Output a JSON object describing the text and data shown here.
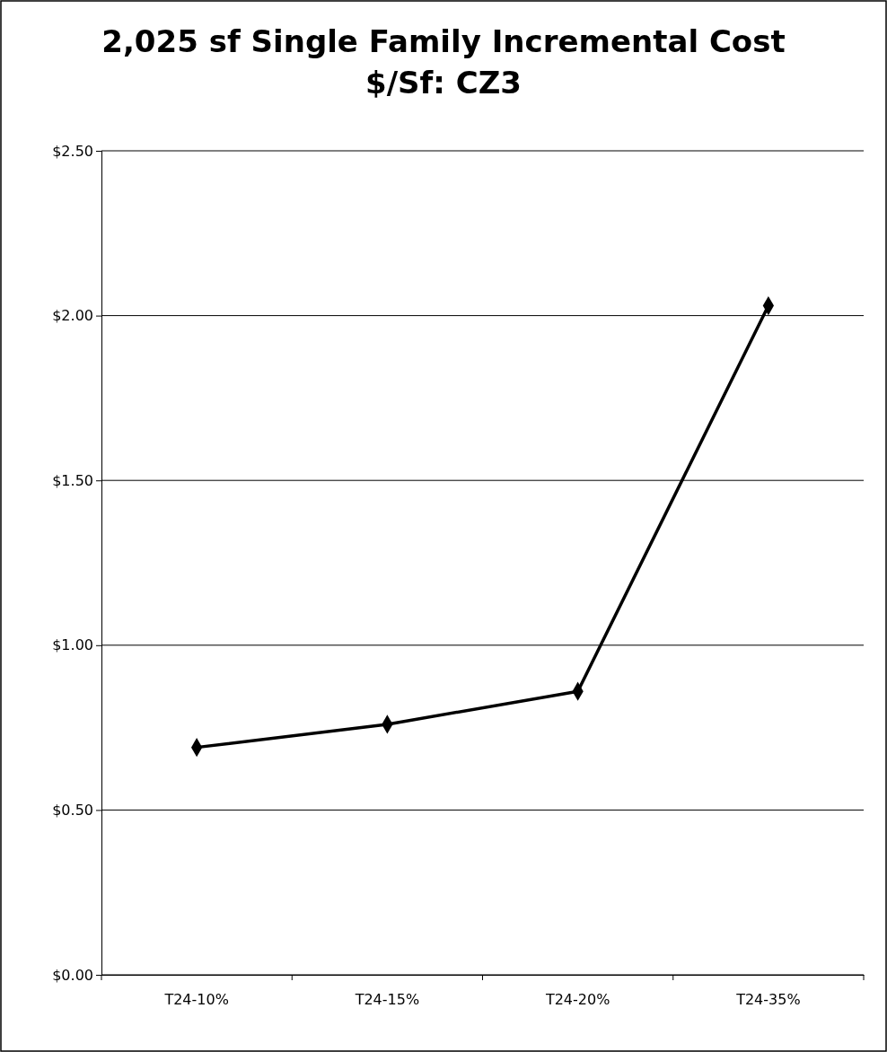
{
  "chart_data": {
    "type": "line",
    "title": "2,025 sf Single Family Incremental Cost\n$/Sf: CZ3",
    "categories": [
      "T24-10%",
      "T24-15%",
      "T24-20%",
      "T24-35%"
    ],
    "series": [
      {
        "color": "#000000",
        "values": [
          0.69,
          0.76,
          0.86,
          2.03
        ]
      }
    ],
    "ylim": [
      0,
      2.5
    ],
    "yticks": [
      {
        "value": 0,
        "label": "$0.00"
      },
      {
        "value": 0.5,
        "label": "$0.50"
      },
      {
        "value": 1,
        "label": "$1.00"
      },
      {
        "value": 1.5,
        "label": "$1.50"
      },
      {
        "value": 2,
        "label": "$2.00"
      },
      {
        "value": 2.5,
        "label": "$2.50"
      }
    ],
    "grid": "y",
    "marker": "diamond",
    "line_style": "solid"
  }
}
